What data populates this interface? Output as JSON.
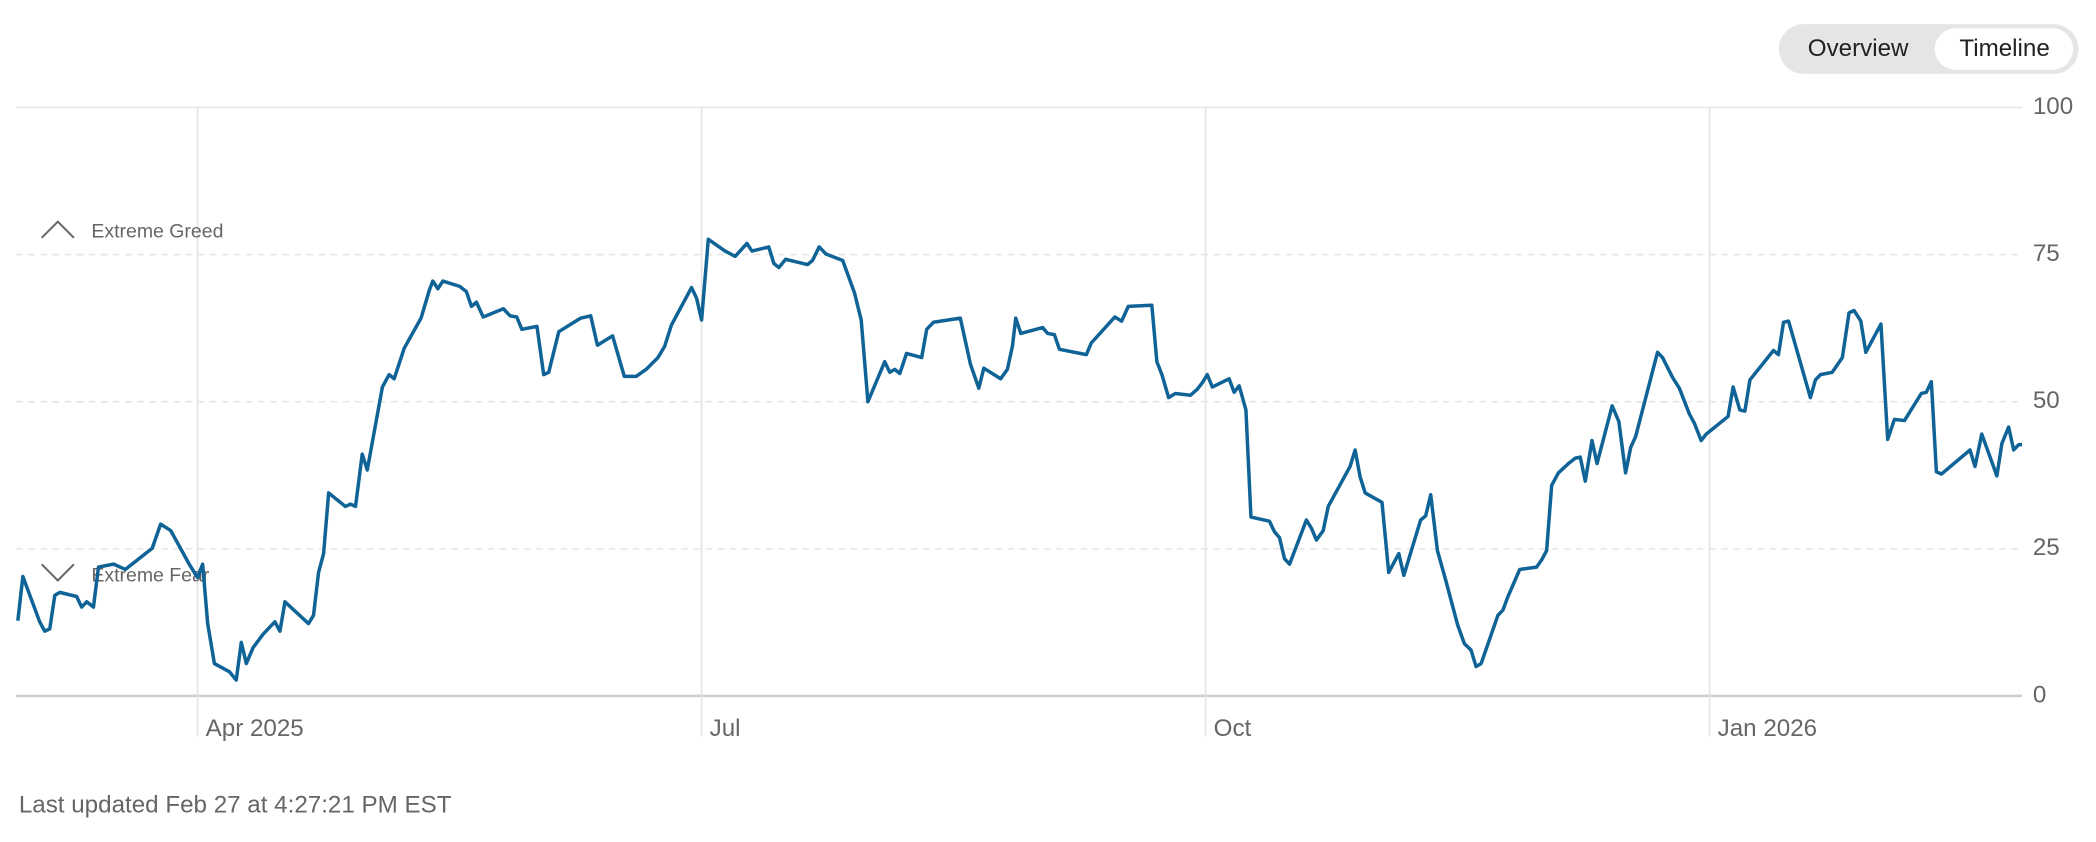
{
  "chart_data": {
    "type": "line",
    "annotations": [
      "Extreme Greed",
      "Extreme Fear"
    ],
    "x": [
      1.93,
      1.96,
      2.06,
      2.09,
      2.12,
      2.15,
      2.18,
      2.28,
      2.31,
      2.34,
      2.38,
      2.41,
      2.5,
      2.57,
      2.73,
      2.78,
      2.84,
      2.95,
      3.0,
      3.03,
      3.06,
      3.1,
      3.19,
      3.23,
      3.26,
      3.29,
      3.33,
      3.39,
      3.46,
      3.49,
      3.52,
      3.66,
      3.69,
      3.72,
      3.75,
      3.78,
      3.88,
      3.91,
      3.94,
      3.98,
      4.01,
      4.1,
      4.14,
      4.17,
      4.23,
      4.33,
      4.38,
      4.4,
      4.43,
      4.46,
      4.56,
      4.6,
      4.63,
      4.66,
      4.7,
      4.82,
      4.86,
      4.9,
      4.93,
      5.02,
      5.06,
      5.09,
      5.15,
      5.28,
      5.34,
      5.38,
      5.47,
      5.54,
      5.61,
      5.67,
      5.74,
      5.78,
      5.82,
      5.94,
      5.97,
      6.0,
      6.04,
      6.14,
      6.2,
      6.27,
      6.3,
      6.4,
      6.43,
      6.46,
      6.5,
      6.63,
      6.66,
      6.7,
      6.74,
      6.84,
      6.91,
      6.95,
      6.99,
      7.09,
      7.12,
      7.15,
      7.18,
      7.22,
      7.31,
      7.34,
      7.38,
      7.54,
      7.6,
      7.65,
      7.68,
      7.78,
      7.82,
      7.85,
      7.87,
      7.9,
      8.03,
      8.06,
      8.1,
      8.13,
      8.29,
      8.32,
      8.46,
      8.5,
      8.54,
      8.68,
      8.71,
      8.74,
      8.78,
      8.82,
      8.91,
      8.95,
      8.98,
      9.01,
      9.04,
      9.14,
      9.17,
      9.2,
      9.24,
      9.27,
      9.38,
      9.41,
      9.44,
      9.47,
      9.5,
      9.6,
      9.63,
      9.66,
      9.7,
      9.73,
      9.86,
      9.89,
      9.92,
      9.95,
      10.05,
      10.09,
      10.15,
      10.18,
      10.28,
      10.31,
      10.34,
      10.38,
      10.43,
      10.5,
      10.54,
      10.58,
      10.61,
      10.64,
      10.74,
      10.77,
      10.8,
      10.87,
      10.97,
      11.0,
      11.03,
      11.06,
      11.1,
      11.16,
      11.2,
      11.23,
      11.26,
      11.3,
      11.33,
      11.42,
      11.46,
      11.5,
      11.53,
      11.56,
      11.69,
      11.72,
      11.78,
      11.82,
      11.88,
      11.91,
      11.95,
      11.98,
      12.11,
      12.14,
      12.18,
      12.21,
      12.24,
      12.38,
      12.41,
      12.44,
      12.47,
      12.6,
      12.63,
      12.66,
      12.73,
      12.79,
      12.83,
      12.86,
      12.9,
      12.93,
      13.02,
      13.06,
      13.1,
      13.16,
      13.26,
      13.29,
      13.32,
      13.35,
      13.38,
      13.55,
      13.58,
      13.62,
      13.71,
      13.74,
      13.78,
      13.81,
      13.84,
      13.86
    ],
    "values": [
      12.8,
      20.3,
      12.6,
      11.0,
      11.4,
      17.1,
      17.6,
      16.9,
      15.1,
      16.0,
      15.1,
      21.9,
      22.4,
      21.5,
      25.1,
      29.2,
      28.1,
      22.4,
      20.1,
      22.4,
      12.3,
      5.5,
      4.1,
      2.7,
      9.1,
      5.5,
      8.2,
      10.5,
      12.6,
      11.0,
      16.0,
      12.3,
      13.7,
      21.0,
      24.2,
      34.5,
      32.2,
      32.6,
      32.2,
      41.1,
      38.4,
      52.5,
      54.6,
      53.9,
      59.1,
      64.2,
      69.0,
      70.5,
      69.2,
      70.5,
      69.6,
      68.7,
      66.2,
      66.9,
      64.4,
      65.8,
      64.6,
      64.4,
      62.3,
      62.8,
      54.6,
      55.0,
      61.9,
      64.2,
      64.6,
      59.6,
      61.2,
      54.3,
      54.3,
      55.5,
      57.5,
      59.4,
      63.0,
      69.4,
      67.6,
      63.9,
      77.6,
      75.6,
      74.7,
      76.9,
      75.6,
      76.3,
      73.5,
      72.8,
      74.2,
      73.3,
      74.0,
      76.3,
      75.1,
      74.0,
      68.5,
      63.9,
      50.0,
      56.8,
      55.0,
      55.5,
      54.8,
      58.2,
      57.5,
      62.3,
      63.5,
      64.2,
      56.4,
      52.3,
      55.7,
      53.9,
      55.5,
      59.4,
      64.2,
      61.6,
      62.6,
      61.6,
      61.4,
      58.9,
      58.0,
      60.0,
      64.4,
      63.7,
      66.2,
      66.4,
      56.8,
      54.6,
      50.7,
      51.4,
      51.1,
      52.1,
      53.2,
      54.6,
      52.5,
      53.9,
      51.6,
      52.7,
      48.6,
      30.4,
      29.7,
      27.9,
      26.9,
      23.3,
      22.4,
      29.9,
      28.5,
      26.5,
      28.1,
      32.2,
      39.0,
      41.8,
      37.2,
      34.5,
      32.9,
      21.0,
      24.2,
      20.5,
      29.9,
      30.6,
      34.2,
      24.7,
      19.6,
      12.1,
      8.9,
      7.8,
      5.0,
      5.5,
      13.7,
      14.6,
      16.9,
      21.5,
      21.9,
      23.1,
      24.7,
      35.8,
      37.9,
      39.5,
      40.4,
      40.6,
      36.5,
      43.4,
      39.5,
      49.3,
      46.6,
      37.9,
      42.2,
      44.1,
      58.4,
      57.5,
      54.1,
      52.3,
      47.9,
      46.3,
      43.4,
      44.5,
      47.5,
      52.5,
      48.6,
      48.4,
      53.7,
      58.7,
      58.0,
      63.5,
      63.7,
      50.7,
      53.7,
      54.6,
      55.0,
      57.5,
      65.1,
      65.5,
      63.7,
      58.4,
      63.2,
      43.6,
      47.0,
      46.8,
      51.4,
      51.6,
      53.4,
      38.1,
      37.7,
      41.8,
      39.0,
      44.5,
      37.4,
      42.9,
      45.7,
      41.8,
      42.7,
      42.7
    ],
    "color": "#0f6396",
    "xlim": [
      1.92,
      13.86
    ],
    "xticks": [
      {
        "value": 3,
        "label": "Apr 2025"
      },
      {
        "value": 6,
        "label": "Jul"
      },
      {
        "value": 9,
        "label": "Oct"
      },
      {
        "value": 12,
        "label": "Jan 2026"
      }
    ],
    "ylim": [
      0,
      100
    ],
    "yticks": [
      0,
      25,
      50,
      75,
      100
    ],
    "grid": true
  },
  "controls": {
    "buttons": [
      "Overview",
      "Timeline"
    ]
  },
  "footer": "Last updated Feb 27 at 4:27:21 PM EST"
}
